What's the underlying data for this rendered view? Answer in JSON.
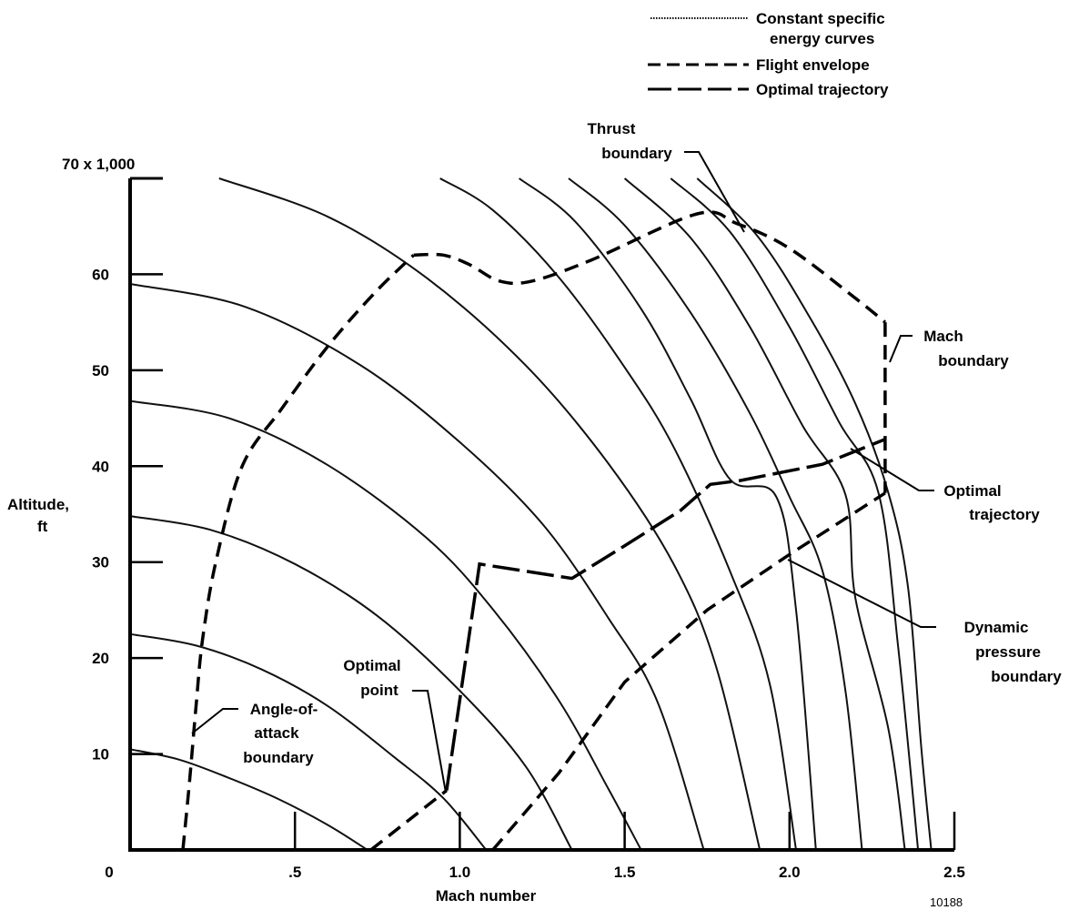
{
  "chart_data": {
    "type": "line",
    "xlabel": "Mach number",
    "ylabel": [
      "Altitude,",
      "ft"
    ],
    "y_multiplier_label": "70 x 1,000",
    "xlim": [
      0,
      2.5
    ],
    "ylim": [
      0,
      70000
    ],
    "x_ticks": [
      {
        "value": 0,
        "label": "0"
      },
      {
        "value": 0.5,
        "label": ".5"
      },
      {
        "value": 1.0,
        "label": "1.0"
      },
      {
        "value": 1.5,
        "label": "1.5"
      },
      {
        "value": 2.0,
        "label": "2.0"
      },
      {
        "value": 2.5,
        "label": "2.5"
      }
    ],
    "y_ticks": [
      {
        "value": 10000,
        "label": "10"
      },
      {
        "value": 20000,
        "label": "20"
      },
      {
        "value": 30000,
        "label": "30"
      },
      {
        "value": 40000,
        "label": "40"
      },
      {
        "value": 50000,
        "label": "50"
      },
      {
        "value": 60000,
        "label": "60"
      }
    ],
    "grid": false,
    "legend": {
      "position": "top-right",
      "entries": [
        {
          "label": [
            "Constant specific",
            "energy curves"
          ],
          "style": "dotted"
        },
        {
          "label": [
            "Flight envelope"
          ],
          "style": "dashed"
        },
        {
          "label": [
            "Optimal trajectory"
          ],
          "style": "long-dash"
        }
      ]
    },
    "energy_curves": [
      {
        "x": [
          0.0,
          0.15,
          0.3,
          0.45,
          0.6,
          0.72
        ],
        "y": [
          10500,
          9400,
          7500,
          5300,
          2600,
          0
        ]
      },
      {
        "x": [
          0.0,
          0.2,
          0.4,
          0.6,
          0.8,
          0.95,
          1.08
        ],
        "y": [
          22500,
          21300,
          18800,
          15000,
          9700,
          5400,
          0
        ]
      },
      {
        "x": [
          0.0,
          0.25,
          0.5,
          0.75,
          1.0,
          1.2,
          1.34
        ],
        "y": [
          34800,
          33300,
          29800,
          24400,
          16600,
          8700,
          0
        ]
      },
      {
        "x": [
          0.0,
          0.3,
          0.6,
          0.9,
          1.1,
          1.3,
          1.45,
          1.55
        ],
        "y": [
          46800,
          45000,
          40100,
          32500,
          25100,
          15600,
          6400,
          0
        ]
      },
      {
        "x": [
          0.0,
          0.35,
          0.7,
          1.0,
          1.25,
          1.45,
          1.6,
          1.74
        ],
        "y": [
          59000,
          56600,
          50500,
          42500,
          34000,
          24200,
          15400,
          0
        ]
      },
      {
        "x": [
          0.27,
          0.6,
          0.9,
          1.2,
          1.45,
          1.65,
          1.78,
          1.91
        ],
        "y": [
          70000,
          66000,
          59600,
          50500,
          40300,
          29700,
          18800,
          0
        ]
      },
      {
        "x": [
          0.94,
          1.1,
          1.3,
          1.5,
          1.65,
          1.82,
          1.94,
          2.02
        ],
        "y": [
          70000,
          66700,
          59700,
          50300,
          41900,
          29000,
          17300,
          0
        ]
      },
      {
        "x": [
          1.18,
          1.35,
          1.55,
          1.7,
          1.82,
          1.96,
          2.02,
          2.08
        ],
        "y": [
          70000,
          65500,
          56400,
          47000,
          38600,
          36800,
          25000,
          0
        ]
      },
      {
        "x": [
          1.33,
          1.5,
          1.7,
          1.88,
          2.0,
          2.1,
          2.17,
          2.22
        ],
        "y": [
          70000,
          65100,
          56000,
          45500,
          36800,
          29100,
          16500,
          0
        ]
      },
      {
        "x": [
          1.5,
          1.7,
          1.88,
          2.04,
          2.17,
          2.2,
          2.3,
          2.35
        ],
        "y": [
          70000,
          63800,
          54500,
          44200,
          37000,
          26200,
          12600,
          0
        ]
      },
      {
        "x": [
          1.64,
          1.82,
          2.0,
          2.15,
          2.27,
          2.33,
          2.39
        ],
        "y": [
          70000,
          64400,
          54500,
          44600,
          37200,
          21000,
          0
        ]
      },
      {
        "x": [
          1.72,
          1.9,
          2.06,
          2.2,
          2.3,
          2.36,
          2.4,
          2.43
        ],
        "y": [
          70000,
          64100,
          55600,
          46500,
          37200,
          27200,
          10500,
          0
        ]
      }
    ],
    "flight_envelope": {
      "angle_of_attack_boundary": {
        "x": [
          0.16,
          0.18,
          0.2,
          0.22,
          0.26,
          0.34,
          0.46,
          0.6,
          0.74,
          0.86
        ],
        "y": [
          0,
          7000,
          15000,
          22000,
          30000,
          40000,
          46000,
          52500,
          58000,
          62000
        ]
      },
      "thrust_boundary": {
        "x": [
          0.86,
          0.95,
          1.03,
          1.12,
          1.22,
          1.4,
          1.72,
          1.84,
          2.0,
          2.2,
          2.29
        ],
        "y": [
          62000,
          62000,
          61000,
          59300,
          59300,
          61500,
          66300,
          65300,
          62700,
          57500,
          55000
        ]
      },
      "mach_boundary": {
        "x": [
          2.29,
          2.29
        ],
        "y": [
          55000,
          37200
        ]
      },
      "dynamic_pressure_boundary": {
        "x": [
          1.1,
          1.3,
          1.5,
          1.75,
          2.0,
          2.29
        ],
        "y": [
          0,
          8000,
          17500,
          25000,
          30800,
          37200
        ]
      },
      "angle_of_attack_boundary_low_speed": {
        "x": [
          0.73,
          0.96
        ],
        "y": [
          0,
          6200
        ]
      }
    },
    "optimal_trajectory": {
      "x": [
        0.96,
        1.06,
        1.34,
        1.5,
        1.67,
        1.76,
        1.85,
        2.1,
        2.29
      ],
      "y": [
        6200,
        29800,
        28300,
        31700,
        35400,
        38100,
        38500,
        40200,
        42800
      ]
    },
    "optimal_point": {
      "x": 0.96,
      "y": 6200
    },
    "annotations": [
      {
        "id": "thrust",
        "lines": [
          "Thrust",
          "boundary"
        ],
        "target": {
          "x": 1.85,
          "y": 65300
        }
      },
      {
        "id": "mach",
        "lines": [
          "Mach",
          "boundary"
        ],
        "target": {
          "x": 2.3,
          "y": 51000
        }
      },
      {
        "id": "optimal-trajectory",
        "lines": [
          "Optimal",
          "trajectory"
        ],
        "target": {
          "x": 2.25,
          "y": 41800
        }
      },
      {
        "id": "dynamic-pressure",
        "lines": [
          "Dynamic",
          "pressure",
          "boundary"
        ],
        "target": {
          "x": 2.0,
          "y": 30800
        }
      },
      {
        "id": "optimal-point",
        "lines": [
          "Optimal",
          "point"
        ],
        "target": {
          "x": 0.95,
          "y": 6000
        }
      },
      {
        "id": "angle-of-attack",
        "lines": [
          "Angle-of-",
          "attack",
          "boundary"
        ],
        "target": {
          "x": 0.19,
          "y": 12500
        }
      }
    ],
    "figure_id": "10188"
  }
}
